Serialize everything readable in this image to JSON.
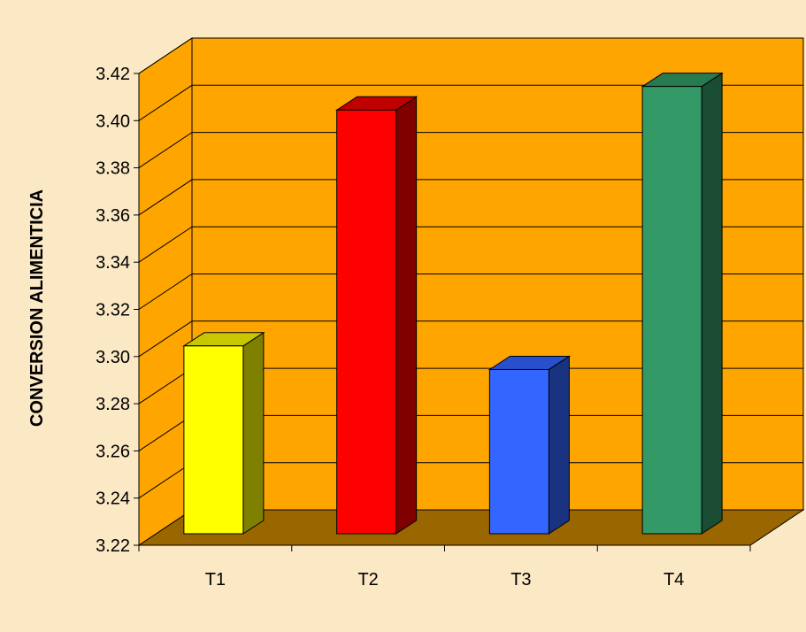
{
  "chart_data": {
    "type": "bar",
    "categories": [
      "T1",
      "T2",
      "T3",
      "T4"
    ],
    "values": [
      3.3,
      3.4,
      3.29,
      3.41
    ],
    "title": "",
    "xlabel": "",
    "ylabel": "CONVERSION ALIMENTICIA",
    "ylim": [
      3.22,
      3.42
    ],
    "yticks": [
      "3.22",
      "3.24",
      "3.26",
      "3.28",
      "3.30",
      "3.32",
      "3.34",
      "3.36",
      "3.38",
      "3.40",
      "3.42"
    ],
    "grid": true,
    "legend": "none",
    "style": "3d",
    "colors": {
      "background": "#fbe8c4",
      "plot_area": "#ffa500",
      "floor": "#996600",
      "side_wall": "#ffa500",
      "bars": [
        {
          "front": "#ffff00",
          "side": "#808000",
          "top": "#c8c800"
        },
        {
          "front": "#ff0000",
          "side": "#800000",
          "top": "#c00000"
        },
        {
          "front": "#3366ff",
          "side": "#1a3380",
          "top": "#2850cc"
        },
        {
          "front": "#339966",
          "side": "#1a4d33",
          "top": "#287a50"
        }
      ]
    }
  }
}
